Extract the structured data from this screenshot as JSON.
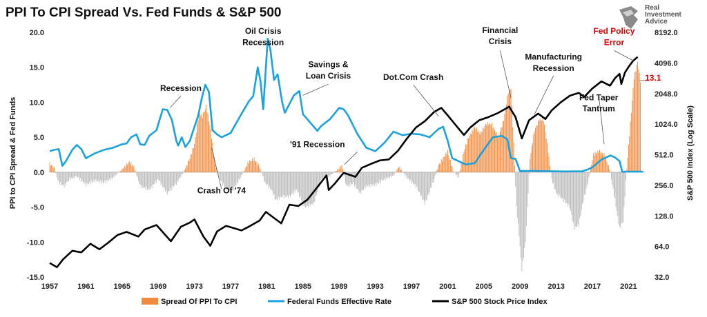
{
  "chart_data": {
    "type": "bar+line",
    "title": "PPI To CPI Spread Vs. Fed Funds & S&P 500",
    "ylabel_left": "PPI to CPI Spread & Fed Funds",
    "ylabel_right": "S&P 500 Index (Log Scale)",
    "ylim_left": [
      -15,
      20
    ],
    "yticks_left": [
      "20.0",
      "15.0",
      "10.0",
      "5.0",
      "0.0",
      "-5.0",
      "-10.0",
      "-15.0"
    ],
    "ylim_right": [
      32,
      8192
    ],
    "yticks_right": [
      "8192.0",
      "4096.0",
      "2048.0",
      "1024.0",
      "512.0",
      "256.0",
      "128.0",
      "64.0",
      "32.0"
    ],
    "x_ticks": [
      "1957",
      "1961",
      "1965",
      "1969",
      "1973",
      "1977",
      "1981",
      "1985",
      "1989",
      "1993",
      "1997",
      "2001",
      "2005",
      "2009",
      "2013",
      "2017",
      "2021"
    ],
    "xlim": [
      1957,
      2022.8
    ],
    "legend": {
      "placement": "bottom",
      "items": [
        {
          "label": "Spread Of PPI To CPI",
          "color": "#f08a3c"
        },
        {
          "label": "Federal Funds Effective Rate",
          "color": "#1ba1dc"
        },
        {
          "label": "S&P 500 Stock Price Index",
          "color": "#000000"
        }
      ]
    },
    "colors": {
      "spread_pos": "#f08a3c",
      "spread_neg": "#b9b9b9",
      "fed": "#1ba1dc",
      "sp": "#000000",
      "highlight": "#e00000"
    },
    "series": [
      {
        "name": "Federal Funds Effective Rate",
        "x": [
          1957.0,
          1957.5,
          1958.0,
          1958.4,
          1958.8,
          1959.5,
          1960.0,
          1960.5,
          1961.0,
          1962.0,
          1963.0,
          1964.0,
          1965.0,
          1965.5,
          1966.0,
          1966.6,
          1967.0,
          1967.5,
          1968.0,
          1968.8,
          1969.5,
          1970.0,
          1970.5,
          1971.0,
          1971.2,
          1971.6,
          1972.0,
          1972.5,
          1973.0,
          1973.4,
          1973.8,
          1974.2,
          1974.6,
          1975.0,
          1975.5,
          1976.0,
          1977.0,
          1978.0,
          1979.0,
          1979.5,
          1980.0,
          1980.3,
          1980.6,
          1980.9,
          1981.1,
          1981.4,
          1981.8,
          1982.2,
          1982.7,
          1983.0,
          1984.0,
          1984.6,
          1985.0,
          1986.0,
          1986.6,
          1987.0,
          1988.0,
          1989.0,
          1989.5,
          1990.0,
          1991.0,
          1992.0,
          1993.0,
          1994.0,
          1995.0,
          1996.0,
          1997.0,
          1998.0,
          1999.0,
          2000.0,
          2000.5,
          2001.0,
          2001.5,
          2002.0,
          2003.0,
          2004.0,
          2005.0,
          2006.0,
          2007.0,
          2007.6,
          2008.0,
          2008.5,
          2009.0,
          2010.0,
          2012.0,
          2014.0,
          2015.9,
          2016.5,
          2017.0,
          2018.0,
          2019.0,
          2019.5,
          2020.0,
          2020.3,
          2021.0,
          2022.0,
          2022.6
        ],
        "y": [
          3.0,
          3.2,
          3.3,
          0.9,
          1.6,
          3.2,
          3.9,
          3.3,
          2.0,
          2.7,
          3.2,
          3.5,
          4.0,
          4.1,
          5.0,
          5.4,
          4.0,
          3.9,
          5.2,
          6.0,
          9.0,
          8.9,
          7.5,
          4.5,
          3.8,
          5.0,
          3.6,
          4.5,
          6.5,
          8.0,
          10.5,
          12.5,
          11.5,
          6.0,
          5.4,
          5.0,
          5.6,
          7.9,
          10.1,
          10.9,
          15.0,
          13.0,
          9.0,
          15.0,
          19.1,
          17.5,
          13.2,
          14.0,
          10.0,
          8.5,
          11.0,
          11.6,
          8.3,
          6.8,
          5.9,
          6.6,
          7.6,
          9.2,
          9.0,
          8.1,
          5.5,
          3.5,
          3.0,
          4.2,
          5.8,
          5.3,
          5.5,
          5.4,
          5.0,
          6.2,
          6.5,
          4.5,
          2.0,
          1.7,
          1.1,
          1.3,
          3.2,
          5.0,
          5.2,
          4.7,
          2.0,
          1.9,
          0.15,
          0.18,
          0.14,
          0.1,
          0.13,
          0.4,
          0.7,
          1.8,
          2.4,
          2.1,
          1.6,
          0.07,
          0.08,
          0.08,
          0.08
        ]
      },
      {
        "name": "S&P 500 Stock Price Index",
        "x": [
          1957.0,
          1957.8,
          1958.5,
          1959.5,
          1960.5,
          1961.5,
          1962.5,
          1963.5,
          1964.5,
          1965.5,
          1966.8,
          1967.5,
          1968.8,
          1970.4,
          1971.5,
          1972.5,
          1973.0,
          1974.0,
          1974.75,
          1975.5,
          1976.5,
          1977.5,
          1978.2,
          1979.0,
          1980.2,
          1980.9,
          1982.6,
          1983.5,
          1984.5,
          1985.5,
          1986.5,
          1987.6,
          1987.85,
          1988.5,
          1989.5,
          1990.8,
          1991.5,
          1992.5,
          1993.5,
          1994.5,
          1995.5,
          1996.5,
          1997.5,
          1998.5,
          1999.5,
          2000.3,
          2001.0,
          2001.7,
          2002.8,
          2003.5,
          2004.5,
          2005.5,
          2006.5,
          2007.8,
          2008.5,
          2009.2,
          2010.0,
          2011.0,
          2011.8,
          2012.5,
          2013.5,
          2014.5,
          2015.5,
          2016.1,
          2017.0,
          2018.0,
          2018.95,
          2019.5,
          2020.0,
          2020.2,
          2020.6,
          2021.0,
          2021.5,
          2022.0
        ],
        "y": [
          44,
          40,
          48,
          58,
          56,
          68,
          60,
          70,
          83,
          89,
          80,
          94,
          104,
          72,
          100,
          110,
          118,
          80,
          65,
          90,
          102,
          96,
          92,
          100,
          115,
          140,
          108,
          165,
          160,
          185,
          240,
          320,
          230,
          265,
          340,
          310,
          380,
          415,
          450,
          460,
          560,
          740,
          950,
          1100,
          1350,
          1480,
          1250,
          1050,
          800,
          950,
          1120,
          1200,
          1310,
          1520,
          1200,
          740,
          1120,
          1300,
          1150,
          1400,
          1680,
          1950,
          2080,
          1900,
          2300,
          2700,
          2450,
          2900,
          3200,
          2550,
          3300,
          3750,
          4300,
          4700
        ]
      },
      {
        "name": "Spread Of PPI To CPI",
        "x": [
          1957.0,
          1957.5,
          1958.0,
          1958.6,
          1959.2,
          1960.0,
          1961.0,
          1962.0,
          1963.0,
          1964.0,
          1965.0,
          1965.8,
          1966.3,
          1967.0,
          1968.0,
          1969.0,
          1970.0,
          1971.0,
          1971.8,
          1972.5,
          1973.0,
          1973.5,
          1973.9,
          1974.3,
          1974.8,
          1975.3,
          1976.0,
          1977.0,
          1978.0,
          1979.0,
          1979.6,
          1980.2,
          1980.8,
          1981.5,
          1982.0,
          1982.7,
          1983.5,
          1984.3,
          1985.2,
          1986.2,
          1987.0,
          1988.0,
          1988.8,
          1989.3,
          1989.8,
          1990.6,
          1991.3,
          1992.0,
          1993.0,
          1994.0,
          1995.0,
          1995.6,
          1996.5,
          1997.5,
          1998.5,
          1999.5,
          2000.0,
          2000.5,
          2001.0,
          2001.6,
          2002.2,
          2002.8,
          2003.3,
          2004.0,
          2004.6,
          2005.3,
          2005.9,
          2006.6,
          2007.2,
          2007.7,
          2008.0,
          2008.3,
          2008.6,
          2008.9,
          2009.2,
          2009.6,
          2010.1,
          2010.6,
          2011.1,
          2011.6,
          2012.0,
          2012.5,
          2013.0,
          2013.8,
          2014.5,
          2015.0,
          2015.5,
          2016.0,
          2016.6,
          2017.1,
          2017.7,
          2018.3,
          2018.9,
          2019.5,
          2020.0,
          2020.4,
          2020.8,
          2021.2,
          2021.6,
          2022.0,
          2022.3
        ],
        "y": [
          1.2,
          0.6,
          -1.5,
          -2.0,
          -1.0,
          -0.6,
          -1.8,
          -1.2,
          -1.5,
          -0.8,
          0.4,
          1.5,
          0.8,
          -2.0,
          -2.5,
          -1.0,
          -3.0,
          -1.6,
          0.0,
          2.0,
          4.0,
          8.5,
          8.0,
          9.5,
          6.0,
          1.0,
          -1.5,
          -3.0,
          -1.0,
          1.5,
          1.9,
          0.8,
          -1.5,
          -2.5,
          -4.0,
          -3.5,
          -3.5,
          -2.5,
          -5.0,
          -4.5,
          -1.0,
          -0.5,
          0.3,
          1.0,
          -2.0,
          -1.6,
          -3.0,
          -2.0,
          -1.8,
          -1.0,
          -0.5,
          0.8,
          -0.8,
          -2.0,
          -4.5,
          -1.0,
          1.0,
          2.0,
          3.0,
          0.2,
          -0.8,
          3.0,
          5.0,
          6.5,
          5.5,
          7.0,
          6.8,
          5.0,
          7.5,
          11.5,
          12.0,
          4.0,
          -5.0,
          -9.0,
          -14.0,
          -10.0,
          2.0,
          6.0,
          7.5,
          7.5,
          4.0,
          -1.0,
          -3.0,
          -4.0,
          -5.0,
          -8.0,
          -7.5,
          -4.0,
          -1.0,
          2.5,
          3.0,
          2.5,
          0.5,
          -4.0,
          -8.0,
          -7.0,
          0.5,
          7.0,
          13.5,
          15.8,
          13.1
        ]
      }
    ],
    "annotations": [
      {
        "text": "Recession",
        "x": 1971.5,
        "y": 11.6,
        "style": "normal"
      },
      {
        "text": "Oil Crisis",
        "x": 1980.6,
        "y": 19.8,
        "style": "normal"
      },
      {
        "text": "Recession",
        "x": 1980.6,
        "y": 18.2,
        "style": "normal"
      },
      {
        "text": "Savings &",
        "x": 1987.8,
        "y": 15.0,
        "style": "normal"
      },
      {
        "text": "Loan Crisis",
        "x": 1987.8,
        "y": 13.4,
        "style": "normal"
      },
      {
        "text": "Dot.Com Crash",
        "x": 1997.2,
        "y": 13.2,
        "style": "normal"
      },
      {
        "text": "Financial",
        "x": 2006.8,
        "y": 19.9,
        "style": "normal"
      },
      {
        "text": "Crisis",
        "x": 2006.8,
        "y": 18.3,
        "style": "normal"
      },
      {
        "text": "Manufacturing",
        "x": 2012.7,
        "y": 16.1,
        "style": "normal"
      },
      {
        "text": "Recession",
        "x": 2012.7,
        "y": 14.5,
        "style": "normal"
      },
      {
        "text": "Fed Policy",
        "x": 2019.4,
        "y": 19.8,
        "style": "red"
      },
      {
        "text": "Error",
        "x": 2019.4,
        "y": 18.2,
        "style": "red"
      },
      {
        "text": "13.1",
        "x": 2023.7,
        "y": 13.1,
        "style": "red"
      },
      {
        "text": "Fed Taper",
        "x": 2017.7,
        "y": 10.3,
        "style": "normal"
      },
      {
        "text": "Tantrum",
        "x": 2017.7,
        "y": 8.7,
        "style": "normal"
      },
      {
        "text": "'91 Recession",
        "x": 1986.6,
        "y": 3.6,
        "style": "normal"
      },
      {
        "text": "Crash Of '74",
        "x": 1976.0,
        "y": -3.0,
        "style": "normal"
      }
    ],
    "logo": {
      "lines": [
        "Real",
        "Investment",
        "Advice"
      ]
    }
  }
}
